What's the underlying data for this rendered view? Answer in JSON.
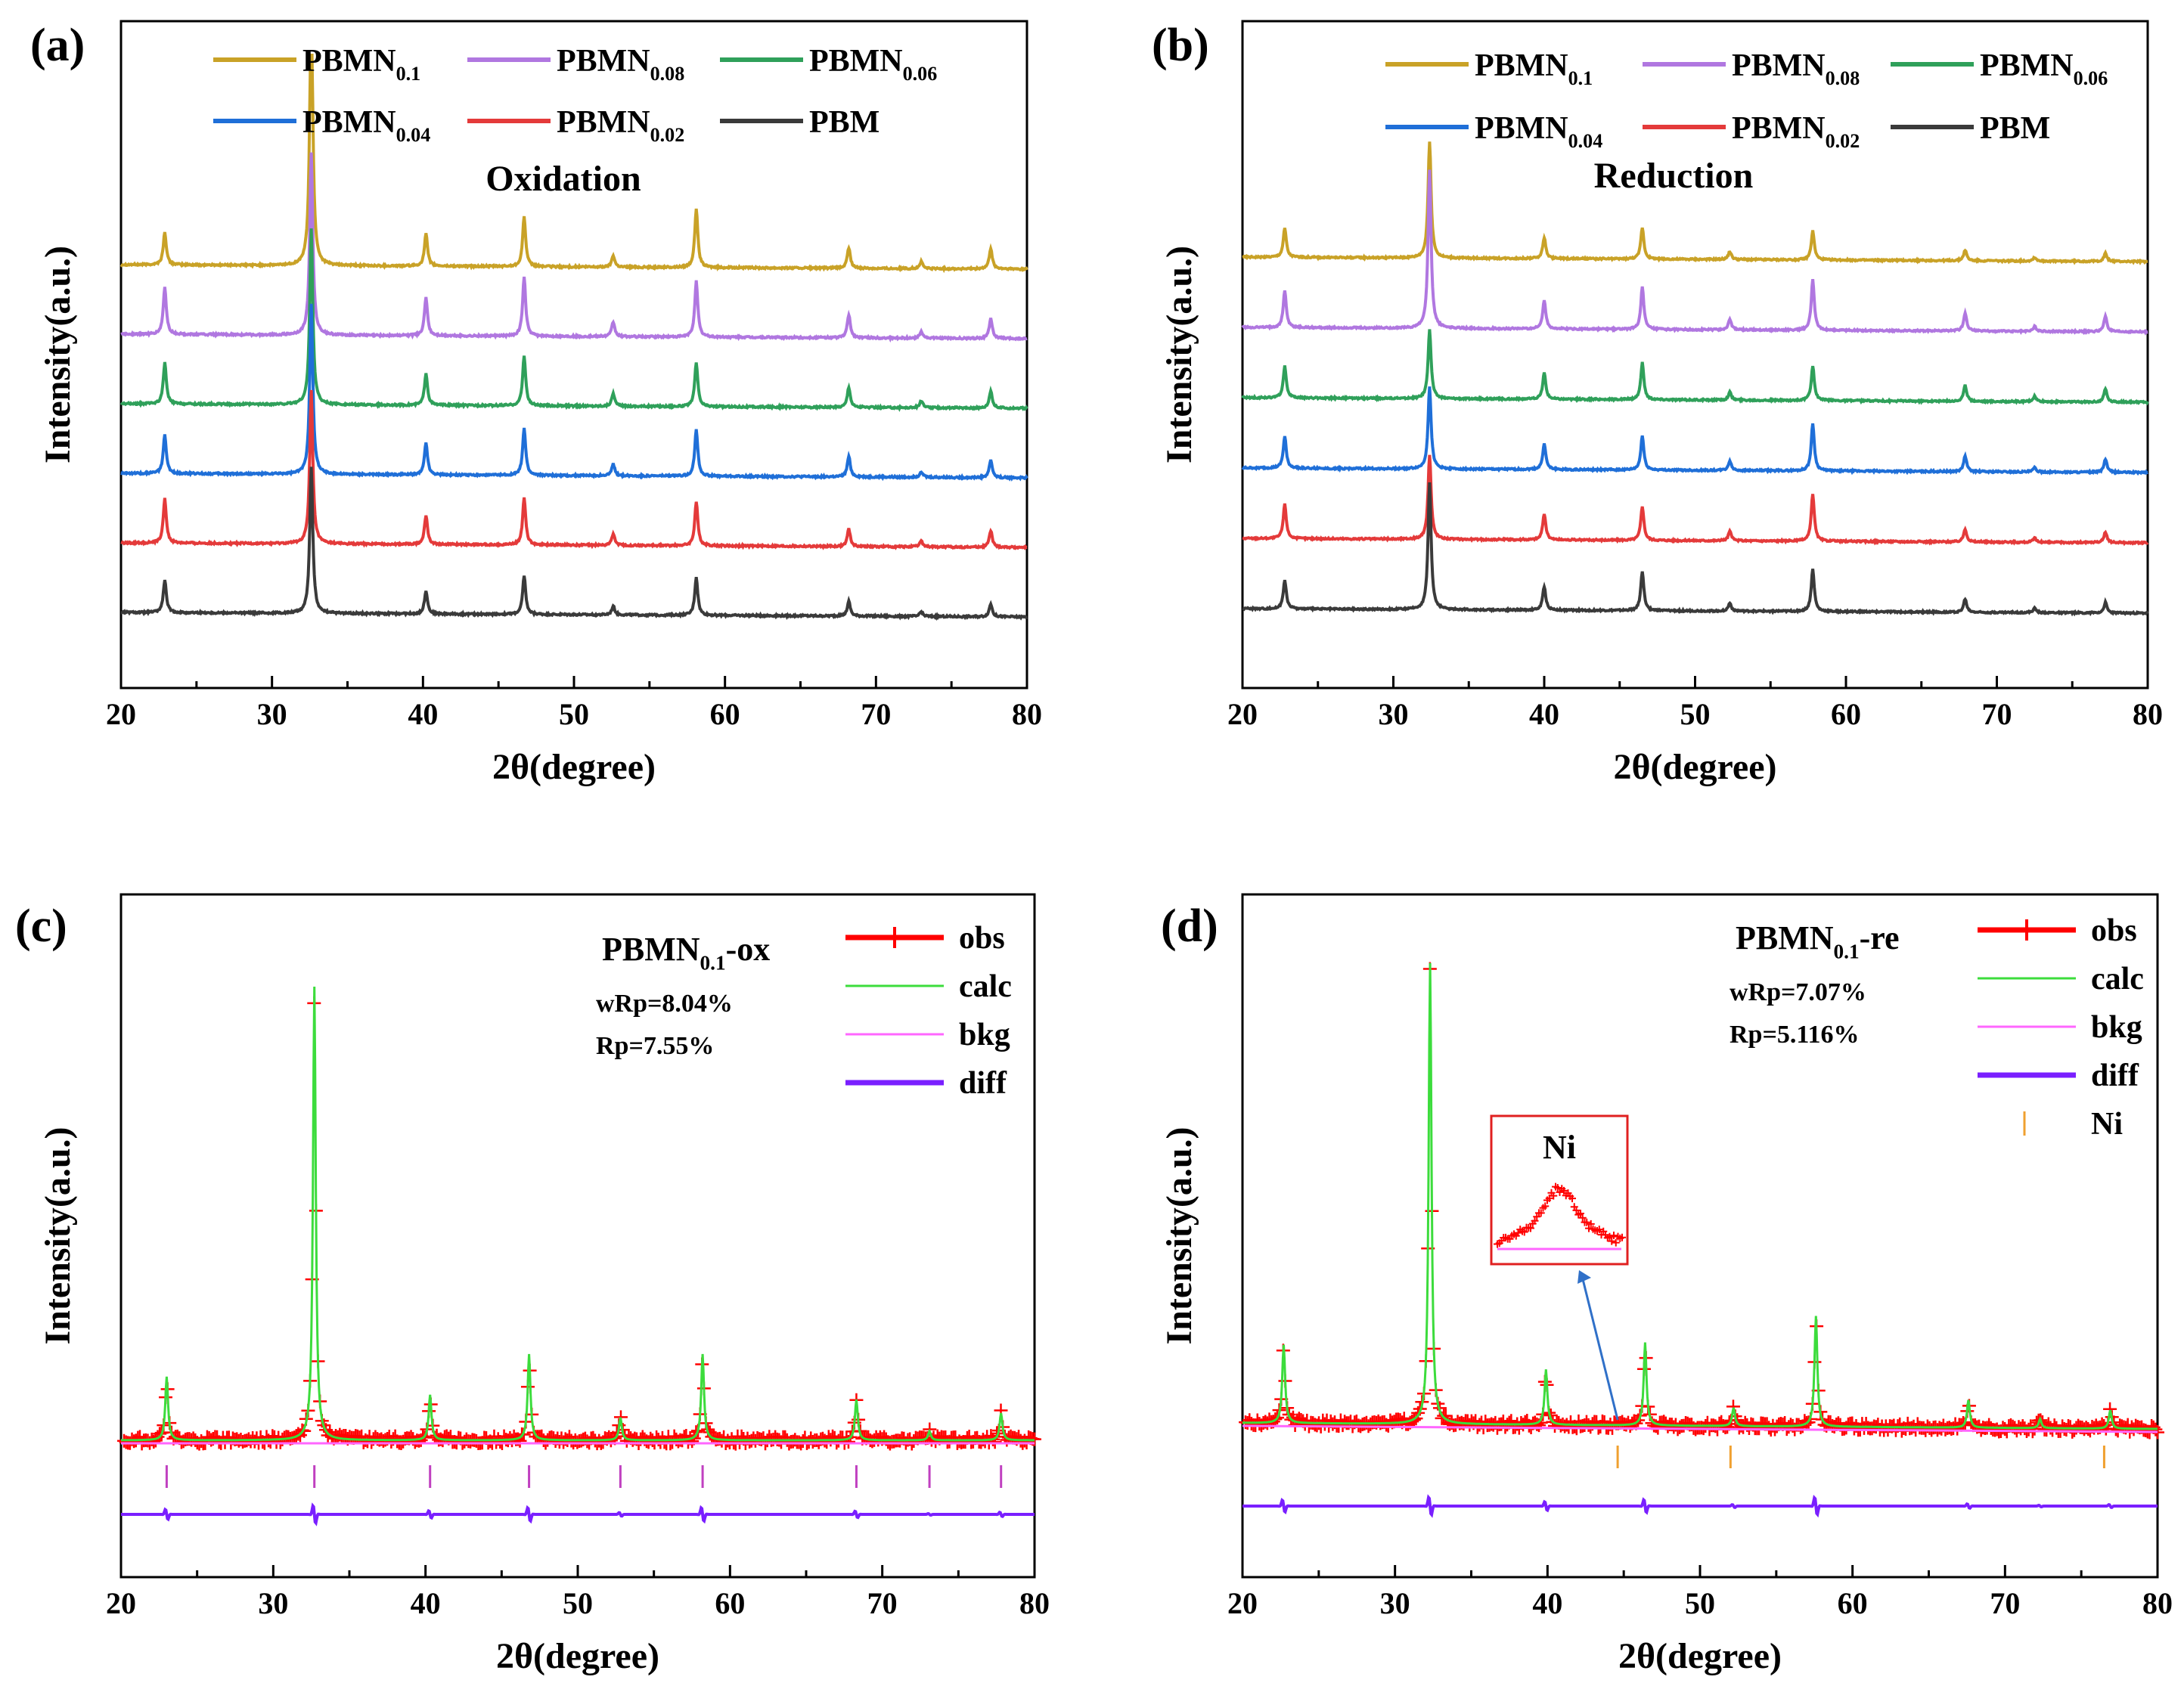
{
  "chart_data": [
    {
      "panel": "(a)",
      "type": "line",
      "title": "Oxidation",
      "xlabel": "2θ(degree)",
      "ylabel": "Intensity(a.u.)",
      "xlim": [
        20,
        80
      ],
      "xticks": [
        "20",
        "30",
        "40",
        "50",
        "60",
        "70",
        "80"
      ],
      "peak_positions": [
        22.9,
        32.6,
        40.2,
        46.7,
        52.6,
        58.1,
        68.2,
        73.0,
        77.6
      ],
      "series": [
        {
          "name": "PBMN0.1",
          "sub": "0.1",
          "color": "#C9A227",
          "offset": 5,
          "baseline_drift": -0.04,
          "heights": [
            0.55,
            4.6,
            0.55,
            0.85,
            0.2,
            1.0,
            0.35,
            0.12,
            0.35
          ]
        },
        {
          "name": "PBMN0.08",
          "sub": "0.08",
          "color": "#B077E0",
          "offset": 4,
          "baseline_drift": -0.04,
          "heights": [
            0.8,
            3.1,
            0.65,
            1.0,
            0.25,
            0.95,
            0.4,
            0.12,
            0.35
          ]
        },
        {
          "name": "PBMN0.06",
          "sub": "0.06",
          "color": "#2FA05A",
          "offset": 3,
          "baseline_drift": -0.04,
          "heights": [
            0.7,
            3.0,
            0.55,
            0.85,
            0.22,
            0.75,
            0.35,
            0.12,
            0.3
          ]
        },
        {
          "name": "PBMN0.04",
          "sub": "0.04",
          "color": "#1F6FD8",
          "offset": 2,
          "baseline_drift": -0.04,
          "heights": [
            0.65,
            2.9,
            0.55,
            0.8,
            0.2,
            0.8,
            0.35,
            0.1,
            0.3
          ]
        },
        {
          "name": "PBMN0.02",
          "sub": "0.02",
          "color": "#E43A3A",
          "offset": 1,
          "baseline_drift": -0.04,
          "heights": [
            0.75,
            2.6,
            0.5,
            0.8,
            0.2,
            0.75,
            0.3,
            0.1,
            0.28
          ]
        },
        {
          "name": "PBM",
          "sub": "",
          "color": "#3A3A3A",
          "offset": 0,
          "baseline_drift": -0.04,
          "heights": [
            0.55,
            2.5,
            0.4,
            0.65,
            0.15,
            0.65,
            0.25,
            0.08,
            0.22
          ]
        }
      ]
    },
    {
      "panel": "(b)",
      "type": "line",
      "title": "Reduction",
      "xlabel": "2θ(degree)",
      "ylabel": "Intensity(a.u.)",
      "xlim": [
        20,
        80
      ],
      "xticks": [
        "20",
        "30",
        "40",
        "50",
        "60",
        "70",
        "80"
      ],
      "peak_positions": [
        22.8,
        32.4,
        40.0,
        46.5,
        52.3,
        57.8,
        67.9,
        72.5,
        77.2
      ],
      "series": [
        {
          "name": "PBMN0.1",
          "sub": "0.1",
          "color": "#C9A227",
          "offset": 5,
          "baseline_drift": 0,
          "heights": [
            0.55,
            2.2,
            0.4,
            0.6,
            0.15,
            0.55,
            0.2,
            0.07,
            0.15
          ]
        },
        {
          "name": "PBMN0.08",
          "sub": "0.08",
          "color": "#B077E0",
          "offset": 4,
          "baseline_drift": 0,
          "heights": [
            0.7,
            3.0,
            0.55,
            0.8,
            0.2,
            0.95,
            0.35,
            0.1,
            0.3
          ]
        },
        {
          "name": "PBMN0.06",
          "sub": "0.06",
          "color": "#2FA05A",
          "offset": 3,
          "baseline_drift": 0,
          "heights": [
            0.6,
            1.3,
            0.5,
            0.7,
            0.15,
            0.65,
            0.3,
            0.1,
            0.25
          ]
        },
        {
          "name": "PBMN0.04",
          "sub": "0.04",
          "color": "#1F6FD8",
          "offset": 2,
          "baseline_drift": 0,
          "heights": [
            0.6,
            1.55,
            0.5,
            0.65,
            0.18,
            0.9,
            0.3,
            0.08,
            0.25
          ]
        },
        {
          "name": "PBMN0.02",
          "sub": "0.02",
          "color": "#E43A3A",
          "offset": 1,
          "baseline_drift": 0,
          "heights": [
            0.65,
            1.6,
            0.5,
            0.65,
            0.18,
            0.9,
            0.25,
            0.08,
            0.2
          ]
        },
        {
          "name": "PBM",
          "sub": "",
          "color": "#3A3A3A",
          "offset": 0,
          "baseline_drift": 0,
          "heights": [
            0.55,
            2.4,
            0.45,
            0.75,
            0.15,
            0.8,
            0.25,
            0.08,
            0.2
          ]
        }
      ]
    },
    {
      "panel": "(c)",
      "type": "line",
      "sample_label": "PBMN0.1-ox",
      "sample_base": "PBMN",
      "sample_sub": "0.1",
      "sample_suffix": "-ox",
      "stats": [
        "wRp=8.04%",
        "Rp=7.55%"
      ],
      "xlabel": "2θ(degree)",
      "ylabel": "Intensity(a.u.)",
      "xlim": [
        20,
        80
      ],
      "xticks": [
        "20",
        "30",
        "40",
        "50",
        "60",
        "70",
        "80"
      ],
      "peak_positions": [
        23.0,
        32.7,
        40.3,
        46.8,
        52.8,
        58.2,
        68.3,
        73.1,
        77.8
      ],
      "obs_heights": [
        0.14,
        1.0,
        0.1,
        0.19,
        0.05,
        0.19,
        0.09,
        0.02,
        0.06
      ],
      "reflection_marks": [
        23.0,
        32.7,
        40.3,
        46.8,
        52.8,
        58.2,
        68.3,
        73.1,
        77.8
      ],
      "legend": [
        {
          "name": "obs",
          "color": "#FF0000"
        },
        {
          "name": "calc",
          "color": "#3CDC3C"
        },
        {
          "name": "bkg",
          "color": "#FF66FF"
        },
        {
          "name": "diff",
          "color": "#7A1FFF"
        }
      ]
    },
    {
      "panel": "(d)",
      "type": "line",
      "sample_label": "PBMN0.1-re",
      "sample_base": "PBMN",
      "sample_sub": "0.1",
      "sample_suffix": "-re",
      "stats": [
        "wRp=7.07%",
        "Rp=5.116%"
      ],
      "xlabel": "2θ(degree)",
      "ylabel": "Intensity(a.u.)",
      "xlim": [
        20,
        80
      ],
      "xticks": [
        "20",
        "30",
        "40",
        "50",
        "60",
        "70",
        "80"
      ],
      "peak_positions": [
        22.7,
        32.3,
        39.9,
        46.4,
        52.2,
        57.6,
        67.6,
        72.3,
        76.9
      ],
      "obs_heights": [
        0.17,
        1.0,
        0.12,
        0.18,
        0.04,
        0.24,
        0.06,
        0.02,
        0.04
      ],
      "reflection_marks": [
        44.6,
        52.0,
        76.5
      ],
      "inset_label": "Ni",
      "legend": [
        {
          "name": "obs",
          "color": "#FF0000"
        },
        {
          "name": "calc",
          "color": "#3CDC3C"
        },
        {
          "name": "bkg",
          "color": "#FF66FF"
        },
        {
          "name": "diff",
          "color": "#7A1FFF"
        },
        {
          "name": "Ni",
          "color": "#F0A030"
        }
      ]
    }
  ]
}
